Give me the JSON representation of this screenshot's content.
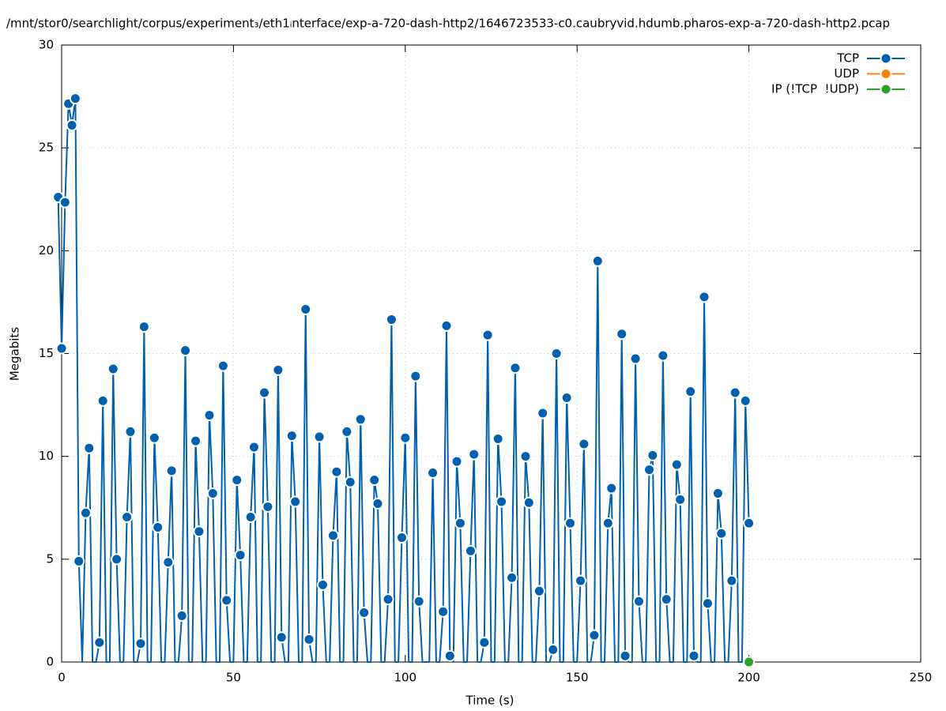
{
  "chart_data": {
    "type": "line",
    "title": "/mnt/stor0/searchlight/corpus/experiment₃/eth1ᵢnterface/exp-a-720-dash-http2/1646723533-c0.caubryvid.hdumb.pharos-exp-a-720-dash-http2.pcap",
    "xlabel": "Time (s)",
    "ylabel": "Megabits",
    "xlim": [
      0,
      250
    ],
    "xticks": [
      0,
      50,
      100,
      150,
      200,
      250
    ],
    "ylim": [
      0,
      30
    ],
    "yticks": [
      0,
      5,
      10,
      15,
      20,
      25,
      30
    ],
    "grid": true,
    "legend": "top-right",
    "series": [
      {
        "name": "TCP",
        "color": "#0060ad",
        "x": [
          -1,
          0,
          1,
          2,
          3,
          4,
          5,
          6,
          7,
          8,
          9,
          10,
          11,
          12,
          13,
          14,
          15,
          16,
          17,
          18,
          19,
          20,
          21,
          22,
          23,
          24,
          25,
          26,
          27,
          28,
          29,
          30,
          31,
          32,
          33,
          34,
          35,
          36,
          37,
          38,
          39,
          40,
          41,
          42,
          43,
          44,
          45,
          46,
          47,
          48,
          49,
          50,
          51,
          52,
          53,
          54,
          55,
          56,
          57,
          58,
          59,
          60,
          61,
          62,
          63,
          64,
          65,
          66,
          67,
          68,
          69,
          70,
          71,
          72,
          73,
          74,
          75,
          76,
          77,
          78,
          79,
          80,
          81,
          82,
          83,
          84,
          85,
          86,
          87,
          88,
          89,
          90,
          91,
          92,
          93,
          94,
          95,
          96,
          97,
          98,
          99,
          100,
          101,
          102,
          103,
          104,
          105,
          106,
          107,
          108,
          109,
          110,
          111,
          112,
          113,
          114,
          115,
          116,
          117,
          118,
          119,
          120,
          121,
          122,
          123,
          124,
          125,
          126,
          127,
          128,
          129,
          130,
          131,
          132,
          133,
          134,
          135,
          136,
          137,
          138,
          139,
          140,
          141,
          142,
          143,
          144,
          145,
          146,
          147,
          148,
          149,
          150,
          151,
          152,
          153,
          154,
          155,
          156,
          157,
          158,
          159,
          160,
          161,
          162,
          163,
          164,
          165,
          166,
          167,
          168,
          169,
          170,
          171,
          172,
          173,
          174,
          175,
          176,
          177,
          178,
          179,
          180,
          181,
          182,
          183,
          184,
          185,
          186,
          187,
          188,
          189,
          190,
          191,
          192,
          193,
          194,
          195,
          196,
          197,
          198,
          199,
          200
        ],
        "values": [
          22.6,
          15.25,
          22.35,
          27.15,
          26.1,
          27.4,
          4.9,
          0,
          7.25,
          10.4,
          0,
          0,
          0.95,
          12.7,
          0,
          0,
          14.25,
          5,
          0,
          0,
          7.05,
          11.2,
          0,
          0,
          0.9,
          16.3,
          0,
          0,
          10.9,
          6.55,
          0,
          0,
          4.85,
          9.3,
          0,
          0,
          2.25,
          15.15,
          0,
          0,
          10.75,
          6.35,
          0,
          0,
          12,
          8.2,
          0,
          0,
          14.4,
          3,
          0,
          0,
          8.85,
          5.2,
          0,
          0,
          7.05,
          10.45,
          0,
          0,
          13.1,
          7.55,
          0,
          0,
          14.2,
          1.2,
          0,
          0,
          11,
          7.8,
          0,
          0,
          17.15,
          1.1,
          0,
          0,
          10.95,
          3.75,
          0,
          0,
          6.15,
          9.25,
          0,
          0,
          11.2,
          8.75,
          0,
          0,
          11.8,
          2.4,
          0,
          0,
          8.85,
          7.7,
          0,
          0,
          3.05,
          16.65,
          0,
          0,
          6.05,
          10.9,
          0,
          0,
          13.9,
          2.95,
          0,
          0,
          0,
          9.2,
          0,
          0,
          2.45,
          16.35,
          0.3,
          0,
          9.75,
          6.75,
          0,
          0,
          5.4,
          10.1,
          0,
          0,
          0.95,
          15.9,
          0,
          0,
          10.85,
          7.8,
          0,
          0,
          4.1,
          14.3,
          0,
          0,
          10,
          7.75,
          0,
          0,
          3.45,
          12.1,
          0,
          0,
          0.6,
          15,
          0,
          0,
          12.85,
          6.75,
          0,
          0,
          3.95,
          10.6,
          0,
          0,
          1.3,
          19.5,
          0,
          0,
          6.75,
          8.45,
          0,
          0,
          15.95,
          0.3,
          0,
          0,
          14.75,
          2.95,
          0,
          0,
          9.35,
          10.05,
          0,
          0,
          14.9,
          3.05,
          0,
          0,
          9.6,
          7.9,
          0,
          0,
          13.15,
          0.3,
          0,
          0,
          17.75,
          2.85,
          0,
          0,
          8.2,
          6.25,
          0,
          0,
          3.95,
          13.1,
          0,
          0,
          12.7,
          6.75
        ]
      },
      {
        "name": "UDP",
        "color": "#f5840c",
        "x": [],
        "values": []
      },
      {
        "name": "IP (!TCP  !UDP)",
        "color": "#2ca02c",
        "x": [
          200
        ],
        "values": [
          0
        ]
      }
    ]
  }
}
